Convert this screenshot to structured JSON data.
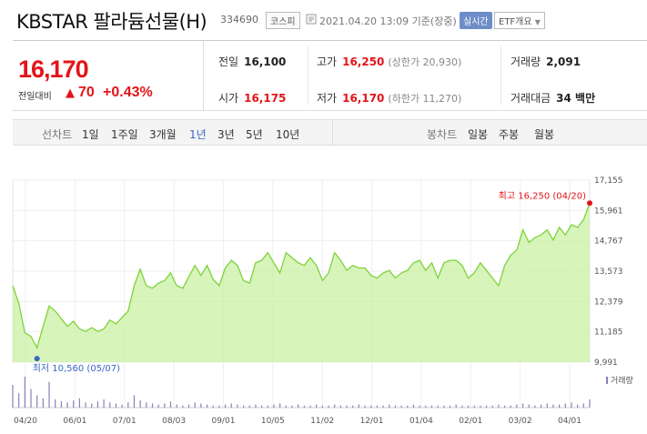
{
  "header": {
    "title": "KBSTAR 팔라듐선물(H)",
    "code": "334690",
    "market": "코스피",
    "datetime": "2021.04.20 13:09 기준(장중)",
    "realtime_label": "실시간",
    "etf_menu_label": "ETF개요"
  },
  "price": {
    "current": "16,170",
    "change_label": "전일대비",
    "change_value": "70",
    "change_rate": "+0.43%",
    "direction": "up"
  },
  "quote": {
    "prev_label": "전일",
    "prev": "16,100",
    "high_label": "고가",
    "high": "16,250",
    "upper_limit": "(상한가 20,930)",
    "volume_label": "거래량",
    "volume": "2,091",
    "open_label": "시가",
    "open": "16,175",
    "low_label": "저가",
    "low": "16,170",
    "lower_limit": "(하한가 11,270)",
    "amount_label": "거래대금",
    "amount": "34 백만"
  },
  "period_tabs": {
    "line_label": "선차트",
    "line_periods": [
      "1일",
      "1주일",
      "3개월",
      "1년",
      "3년",
      "5년",
      "10년"
    ],
    "active_line": "1년",
    "candle_label": "봉차트",
    "candle_periods": [
      "일봉",
      "주봉",
      "월봉"
    ]
  },
  "colors": {
    "up": "#e2141a",
    "accent": "#3a66c4",
    "area": "#c9f0a4",
    "line": "#7fd33a"
  },
  "icons": {
    "clock": "clock-icon",
    "dropdown": "chevron-down-icon",
    "up": "triangle-up-icon"
  },
  "chart_data": {
    "type": "area",
    "y_ticks": [
      "17,155",
      "15,961",
      "14,767",
      "13,573",
      "12,379",
      "11,185",
      "9,991"
    ],
    "ylim": [
      9991,
      17155
    ],
    "x_ticks": [
      "04/20",
      "06/01",
      "07/01",
      "08/03",
      "09/01",
      "10/05",
      "11/02",
      "12/01",
      "01/04",
      "02/01",
      "03/02",
      "04/01"
    ],
    "high_annotation": "최고 16,250 (04/20)",
    "low_annotation": "최저 10,560 (05/07)",
    "volume_label": "거래량",
    "values": [
      13000,
      12300,
      11150,
      11000,
      10560,
      11400,
      12200,
      12000,
      11700,
      11400,
      11600,
      11300,
      11200,
      11350,
      11200,
      11300,
      11650,
      11500,
      11750,
      12000,
      13000,
      13650,
      13000,
      12900,
      13100,
      13200,
      13500,
      13000,
      12900,
      13350,
      13800,
      13400,
      13800,
      13250,
      13000,
      13700,
      14000,
      13800,
      13200,
      13100,
      13900,
      14000,
      14300,
      13900,
      13500,
      14300,
      14100,
      13900,
      13800,
      14100,
      13800,
      13200,
      13500,
      14300,
      14000,
      13600,
      13800,
      13700,
      13700,
      13400,
      13300,
      13500,
      13600,
      13300,
      13500,
      13600,
      13900,
      14000,
      13600,
      13900,
      13300,
      13900,
      14000,
      14000,
      13800,
      13300,
      13500,
      13900,
      13600,
      13300,
      13000,
      13800,
      14200,
      14400,
      15200,
      14700,
      14900,
      15000,
      15200,
      14800,
      15300,
      15000,
      15400,
      15300,
      15600,
      16250
    ],
    "volumes": [
      22,
      14,
      30,
      18,
      12,
      9,
      25,
      8,
      6,
      5,
      7,
      9,
      5,
      4,
      6,
      8,
      5,
      4,
      3,
      5,
      12,
      7,
      5,
      4,
      3,
      4,
      6,
      3,
      2,
      3,
      5,
      4,
      3,
      2,
      2,
      3,
      4,
      3,
      2,
      2,
      3,
      2,
      2,
      3,
      4,
      2,
      2,
      3,
      2,
      2,
      3,
      2,
      2,
      3,
      2,
      2,
      2,
      3,
      2,
      2,
      2,
      2,
      3,
      2,
      2,
      2,
      3,
      2,
      2,
      2,
      2,
      2,
      2,
      3,
      2,
      2,
      2,
      2,
      2,
      2,
      3,
      2,
      2,
      3,
      4,
      3,
      2,
      3,
      4,
      3,
      3,
      4,
      5,
      3,
      4,
      8
    ]
  }
}
